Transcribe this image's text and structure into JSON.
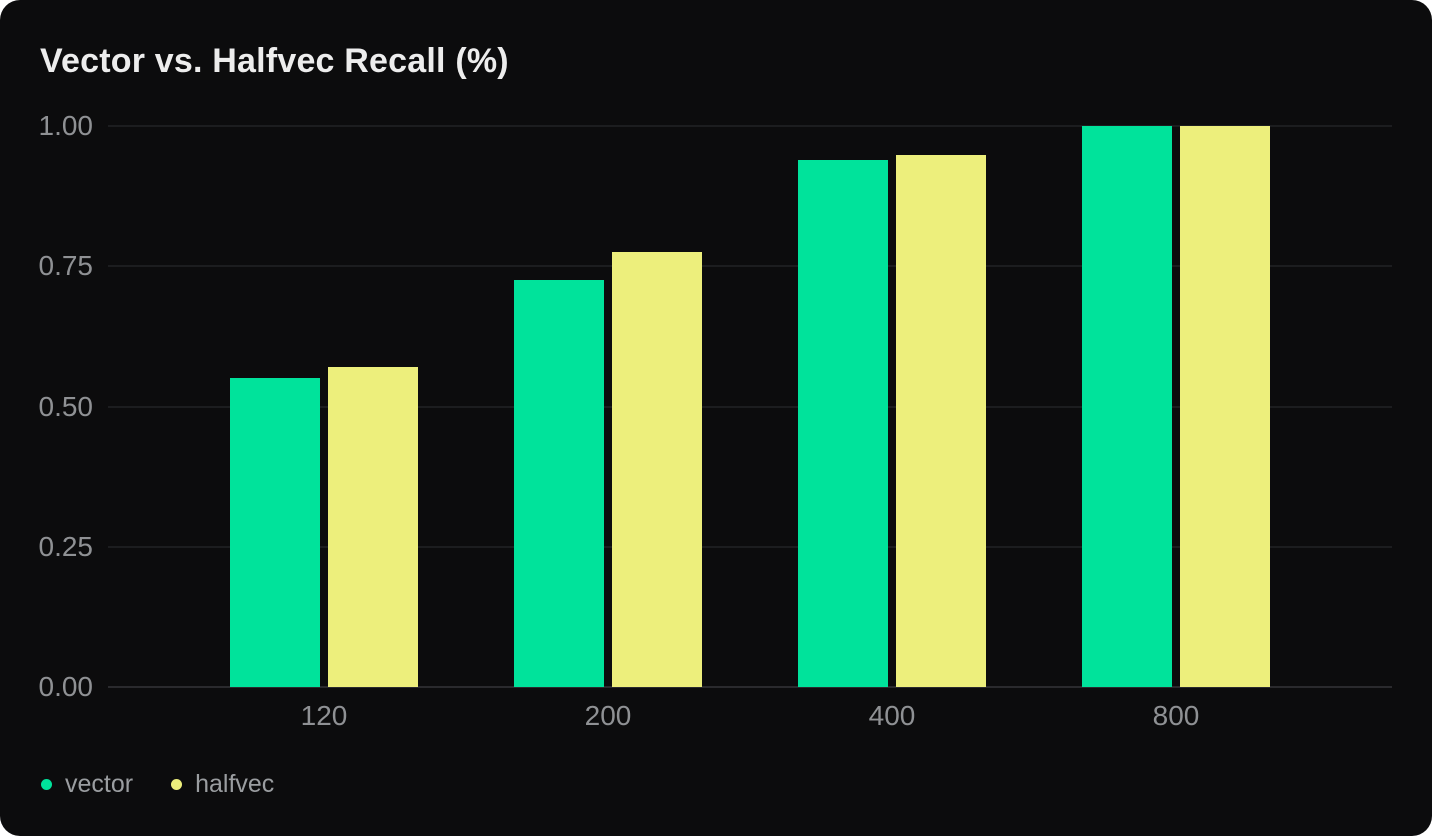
{
  "colors": {
    "page_background": "#ffffff",
    "card_background": "#0c0c0d",
    "gridline": "#2c2e31",
    "axis_line": "#47494d",
    "text_primary": "#ededed",
    "text_muted": "#8f9194",
    "text_legend": "#9a9da0"
  },
  "chart_data": {
    "type": "bar",
    "title": "Vector vs. Halfvec Recall (%)",
    "xlabel": "",
    "ylabel": "",
    "categories": [
      "120",
      "200",
      "400",
      "800"
    ],
    "series": [
      {
        "name": "vector",
        "color": "#00e39b",
        "values": [
          0.55,
          0.725,
          0.94,
          1.0
        ]
      },
      {
        "name": "halfvec",
        "color": "#edef7c",
        "values": [
          0.57,
          0.775,
          0.948,
          1.0
        ]
      }
    ],
    "ylim": [
      0,
      1
    ],
    "yticks": [
      "0.00",
      "0.25",
      "0.50",
      "0.75",
      "1.00"
    ],
    "grid": true,
    "legend_position": "bottom-left"
  }
}
